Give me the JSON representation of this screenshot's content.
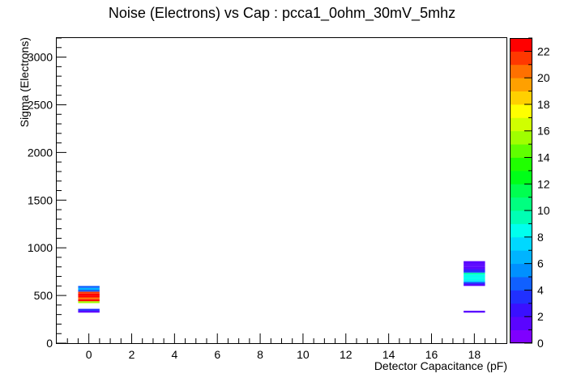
{
  "chart_data": {
    "type": "heatmap",
    "title": "Noise (Electrons) vs Cap : pcca1_0ohm_30mV_5mhz",
    "xlabel": "Detector Capacitance (pF)",
    "ylabel": "Sigma (Electrons)",
    "xlim": [
      -1.5,
      19.5
    ],
    "ylim": [
      0,
      3200
    ],
    "x_ticks": [
      0,
      2,
      4,
      6,
      8,
      10,
      12,
      14,
      16,
      18
    ],
    "y_ticks": [
      0,
      500,
      1000,
      1500,
      2000,
      2500,
      3000
    ],
    "cell_width": 1,
    "cell_height": 20,
    "cells": [
      {
        "x": 0,
        "y": 330,
        "count": 1
      },
      {
        "x": 0,
        "y": 350,
        "count": 3
      },
      {
        "x": 0,
        "y": 430,
        "count": 15
      },
      {
        "x": 0,
        "y": 450,
        "count": 22
      },
      {
        "x": 0,
        "y": 470,
        "count": 20
      },
      {
        "x": 0,
        "y": 490,
        "count": 23
      },
      {
        "x": 0,
        "y": 510,
        "count": 22
      },
      {
        "x": 0,
        "y": 530,
        "count": 21
      },
      {
        "x": 0,
        "y": 550,
        "count": 4
      },
      {
        "x": 0,
        "y": 570,
        "count": 6
      },
      {
        "x": 0,
        "y": 590,
        "count": 4
      },
      {
        "x": 18,
        "y": 330,
        "count": 1
      },
      {
        "x": 18,
        "y": 610,
        "count": 1
      },
      {
        "x": 18,
        "y": 630,
        "count": 3
      },
      {
        "x": 18,
        "y": 650,
        "count": 7
      },
      {
        "x": 18,
        "y": 670,
        "count": 8
      },
      {
        "x": 18,
        "y": 690,
        "count": 8
      },
      {
        "x": 18,
        "y": 710,
        "count": 8
      },
      {
        "x": 18,
        "y": 730,
        "count": 9
      },
      {
        "x": 18,
        "y": 750,
        "count": 3
      },
      {
        "x": 18,
        "y": 770,
        "count": 2
      },
      {
        "x": 18,
        "y": 790,
        "count": 1
      },
      {
        "x": 18,
        "y": 810,
        "count": 1
      },
      {
        "x": 18,
        "y": 830,
        "count": 1
      },
      {
        "x": 18,
        "y": 850,
        "count": 1
      }
    ],
    "colorbar": {
      "min": 0,
      "max": 23,
      "ticks": [
        0,
        2,
        4,
        6,
        8,
        10,
        12,
        14,
        16,
        18,
        20,
        22
      ],
      "colors": [
        "#7f00ff",
        "#5a05ff",
        "#3a10ff",
        "#2030ff",
        "#1060ff",
        "#0090ff",
        "#00b4ff",
        "#00d8ff",
        "#00ffee",
        "#00ffb4",
        "#00ff80",
        "#00ff50",
        "#00ff18",
        "#20ff00",
        "#60ff00",
        "#a0ff00",
        "#d0ff00",
        "#ffff00",
        "#ffd000",
        "#ffa000",
        "#ff7000",
        "#ff3800",
        "#ff0000"
      ]
    },
    "grid": false,
    "legend": "colorbar-right"
  }
}
